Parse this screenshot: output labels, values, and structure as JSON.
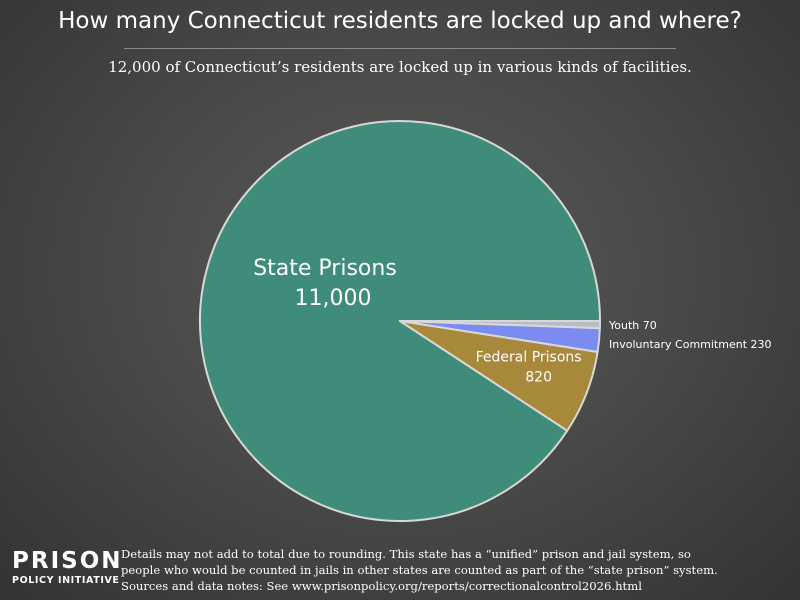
{
  "header": {
    "title": "How many Connecticut residents are locked up and where?",
    "subtitle": "12,000 of Connecticut’s residents are locked up in various kinds of facilities."
  },
  "chart_data": {
    "type": "pie",
    "slices": [
      {
        "name": "State Prisons",
        "value": 11000,
        "label": "11,000",
        "color": "#3f8c7a",
        "label_style": "inside-large"
      },
      {
        "name": "Youth",
        "value": 70,
        "label": "70",
        "color": "#b8bcc8",
        "label_style": "outside"
      },
      {
        "name": "Involuntary Commitment",
        "value": 230,
        "label": "230",
        "color": "#7b8cf0",
        "label_style": "outside"
      },
      {
        "name": "Federal Prisons",
        "value": 820,
        "label": "820",
        "color": "#a8883a",
        "label_style": "inside"
      }
    ],
    "border_color": "#d8d8d8"
  },
  "footnote": {
    "line1": "Details may not add to total due to rounding. This state has a “unified” prison and jail system, so",
    "line2": "people who would be counted in jails in other states are counted as part of the “state prison” system.",
    "line3": "Sources and data notes: See www.prisonpolicy.org/reports/correctionalcontrol2026.html"
  },
  "logo": {
    "main": "PRISON",
    "sub": "POLICY INITIATIVE"
  }
}
